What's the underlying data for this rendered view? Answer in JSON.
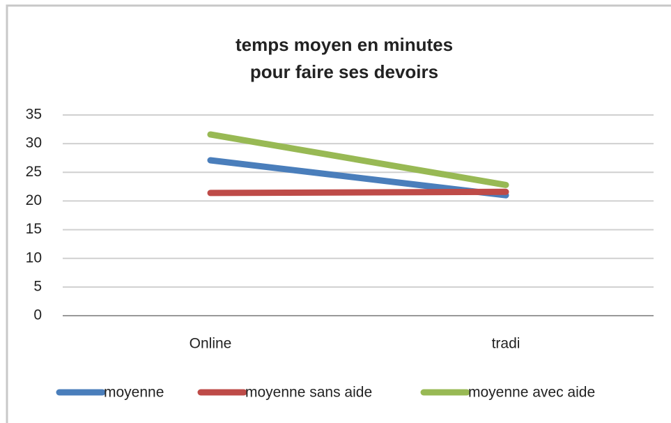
{
  "chart_data": {
    "type": "line",
    "title": [
      "temps moyen en minutes",
      "pour faire ses devoirs"
    ],
    "categories": [
      "Online",
      "tradi"
    ],
    "series": [
      {
        "name": "moyenne",
        "color": "#4a7ebb",
        "values": [
          27.1,
          21
        ]
      },
      {
        "name": "moyenne sans aide",
        "color": "#be4b48",
        "values": [
          21.4,
          21.6
        ]
      },
      {
        "name": "moyenne avec aide",
        "color": "#98b954",
        "values": [
          31.6,
          22.8
        ]
      }
    ],
    "ylim": [
      0,
      35
    ],
    "yticks": [
      0,
      5,
      10,
      15,
      20,
      25,
      30,
      35
    ],
    "grid": true,
    "legend": "bottom"
  }
}
